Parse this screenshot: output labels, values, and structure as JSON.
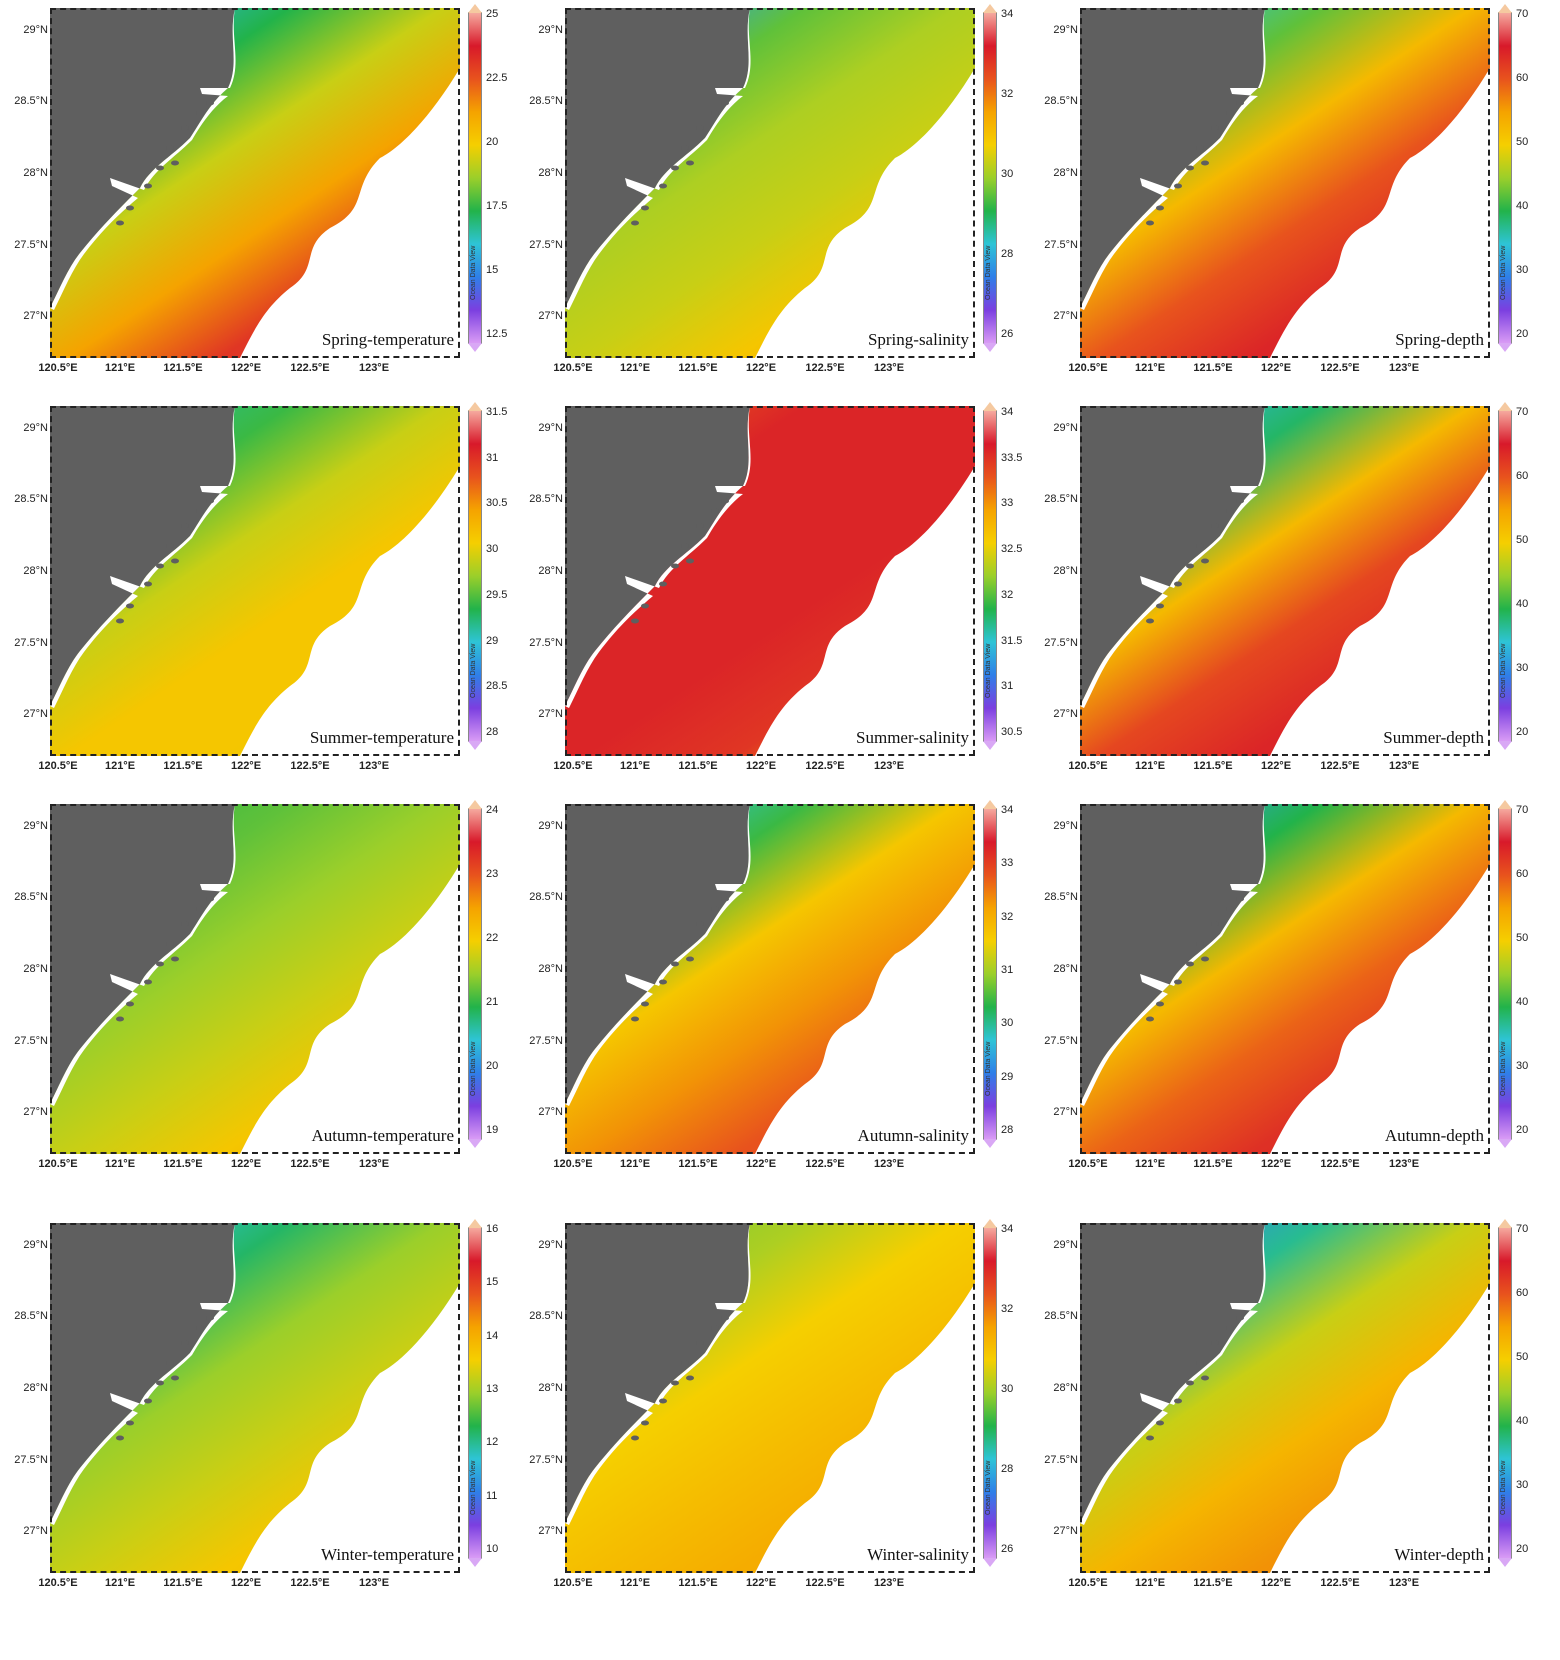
{
  "latitude_labels": [
    "29°N",
    "28.5°N",
    "28°N",
    "27.5°N",
    "27°N"
  ],
  "longitude_labels": [
    "120.5°E",
    "121°E",
    "121.5°E",
    "122°E",
    "122.5°E",
    "123°E"
  ],
  "watermark": "Ocean Data View",
  "colors": {
    "land": "#5f5f5f",
    "coast": "#ffffff",
    "scale": [
      "#d99bf5",
      "#7b3fe0",
      "#2f7fe8",
      "#2ec4d6",
      "#22b34a",
      "#9bcf2a",
      "#f5cf00",
      "#f5a300",
      "#e8531d",
      "#d8192a",
      "#f5a99e"
    ]
  },
  "panels": [
    {
      "id": "spring-temperature",
      "label": "Spring-temperature",
      "ticks": [
        "25",
        "22.5",
        "20",
        "17.5",
        "15",
        "12.5"
      ],
      "pattern": [
        0.28,
        0.4,
        0.55,
        0.7,
        0.85,
        0.92
      ]
    },
    {
      "id": "spring-salinity",
      "label": "Spring-salinity",
      "ticks": [
        "34",
        "32",
        "30",
        "28",
        "26"
      ],
      "pattern": [
        0.25,
        0.45,
        0.52,
        0.55,
        0.62,
        0.7
      ]
    },
    {
      "id": "spring-depth",
      "label": "Spring-depth",
      "ticks": [
        "70",
        "60",
        "50",
        "40",
        "30",
        "20"
      ],
      "pattern": [
        0.3,
        0.45,
        0.65,
        0.8,
        0.88,
        0.88
      ]
    },
    {
      "id": "summer-temperature",
      "label": "Summer-temperature",
      "ticks": [
        "31.5",
        "31",
        "30.5",
        "30",
        "29.5",
        "29",
        "28.5",
        "28"
      ],
      "pattern": [
        0.35,
        0.42,
        0.55,
        0.62,
        0.62,
        0.58
      ]
    },
    {
      "id": "summer-salinity",
      "label": "Summer-salinity",
      "ticks": [
        "34",
        "33.5",
        "33",
        "32.5",
        "32",
        "31.5",
        "31",
        "30.5"
      ],
      "pattern": [
        0.8,
        0.88,
        0.88,
        0.88,
        0.85,
        0.7
      ]
    },
    {
      "id": "summer-depth",
      "label": "Summer-depth",
      "ticks": [
        "70",
        "60",
        "50",
        "40",
        "30",
        "20"
      ],
      "pattern": [
        0.28,
        0.38,
        0.65,
        0.82,
        0.88,
        0.88
      ]
    },
    {
      "id": "autumn-temperature",
      "label": "Autumn-temperature",
      "ticks": [
        "24",
        "23",
        "22",
        "21",
        "20",
        "19"
      ],
      "pattern": [
        0.42,
        0.45,
        0.5,
        0.55,
        0.62,
        0.7
      ]
    },
    {
      "id": "autumn-salinity",
      "label": "Autumn-salinity",
      "ticks": [
        "34",
        "33",
        "32",
        "31",
        "30",
        "29",
        "28"
      ],
      "pattern": [
        0.3,
        0.42,
        0.62,
        0.72,
        0.8,
        0.84
      ]
    },
    {
      "id": "autumn-depth",
      "label": "Autumn-depth",
      "ticks": [
        "70",
        "60",
        "50",
        "40",
        "30",
        "20"
      ],
      "pattern": [
        0.25,
        0.4,
        0.65,
        0.78,
        0.86,
        0.88
      ]
    },
    {
      "id": "winter-temperature",
      "label": "Winter-temperature",
      "ticks": [
        "16",
        "15",
        "14",
        "13",
        "12",
        "11",
        "10"
      ],
      "pattern": [
        0.3,
        0.38,
        0.5,
        0.55,
        0.62,
        0.65
      ]
    },
    {
      "id": "winter-salinity",
      "label": "Winter-salinity",
      "ticks": [
        "34",
        "32",
        "30",
        "28",
        "26"
      ],
      "pattern": [
        0.48,
        0.52,
        0.6,
        0.64,
        0.68,
        0.7
      ]
    },
    {
      "id": "winter-depth",
      "label": "Winter-depth",
      "ticks": [
        "70",
        "60",
        "50",
        "40",
        "30",
        "20"
      ],
      "pattern": [
        0.22,
        0.35,
        0.55,
        0.66,
        0.72,
        0.75
      ]
    }
  ]
}
